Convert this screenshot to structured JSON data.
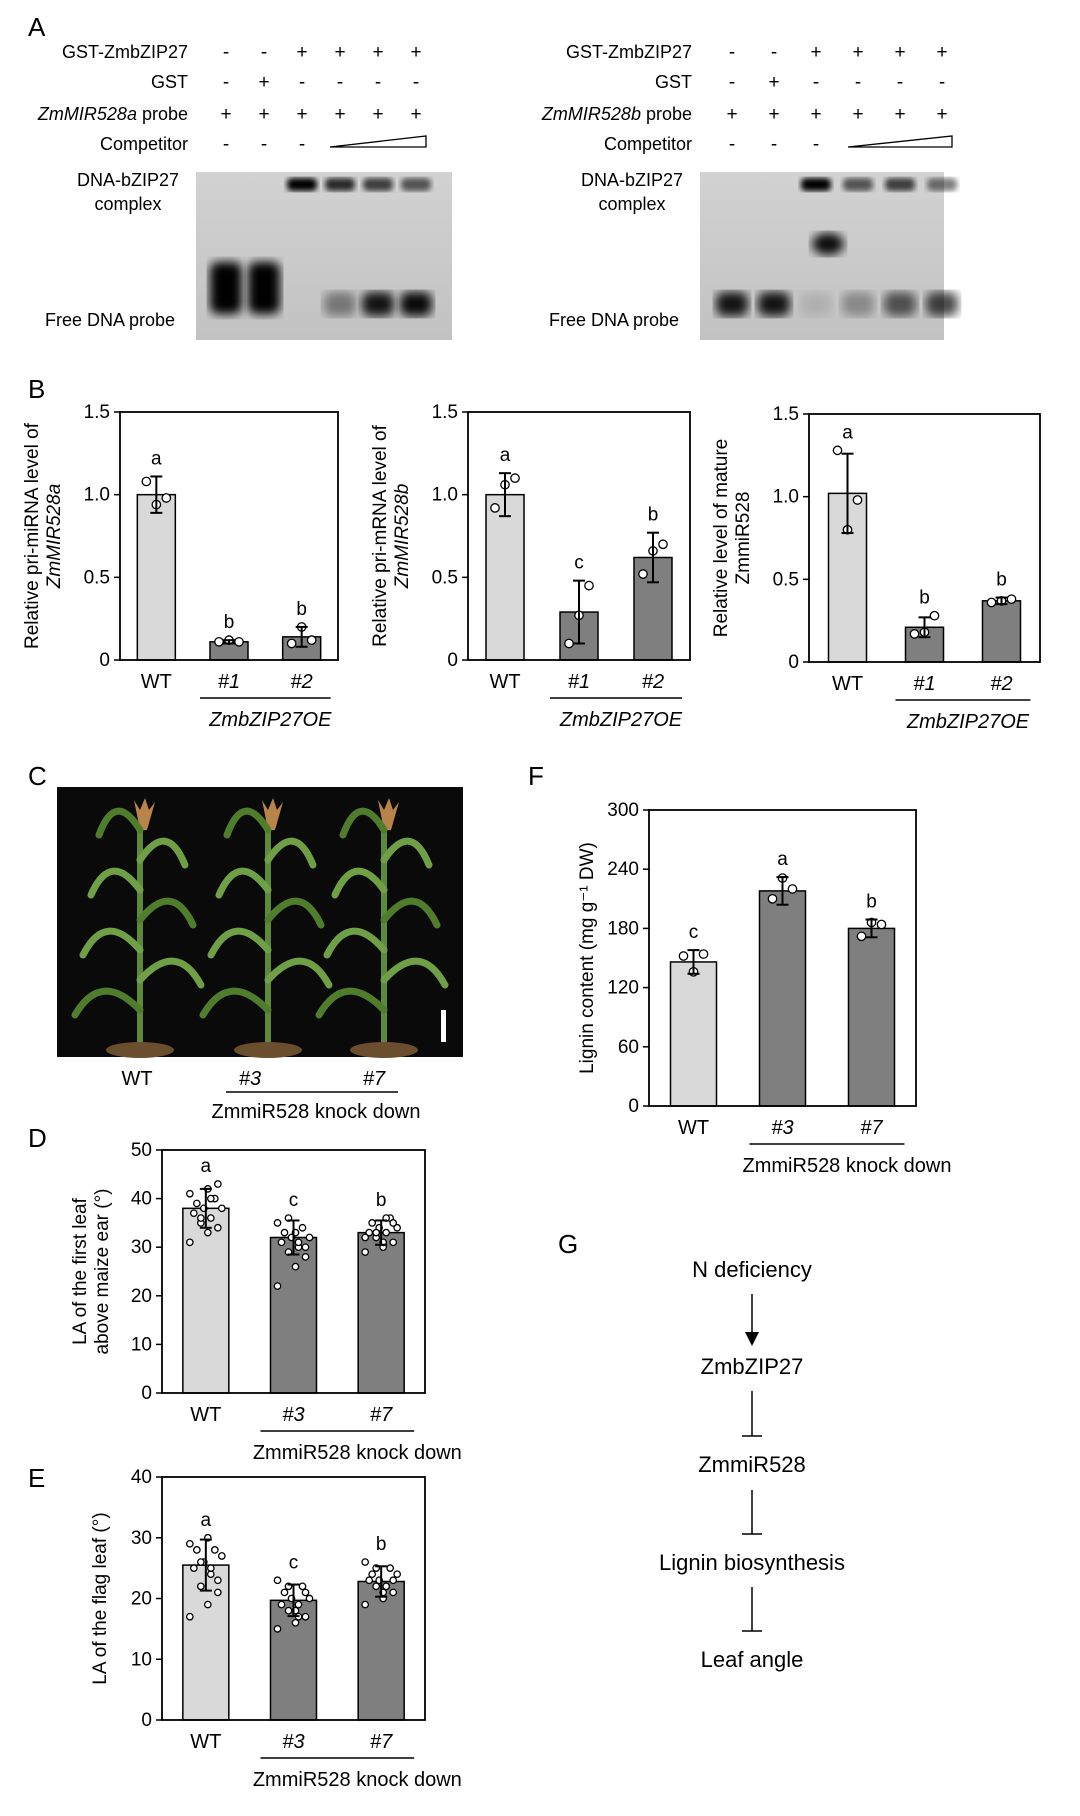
{
  "colors": {
    "wt": "#d9d9d9",
    "mutant": "#7f7f7f",
    "axis": "#000000",
    "gel_bg": "#c8c8c8",
    "plant_bg": "#0a0a0a"
  },
  "panels": {
    "A": {
      "letter": "A",
      "gels": [
        {
          "rows": [
            {
              "label": "GST-ZmbZIP27",
              "label_it": "",
              "label_rest": "",
              "signs": [
                "-",
                "-",
                "+",
                "+",
                "+",
                "+"
              ]
            },
            {
              "label": "GST",
              "label_it": "",
              "label_rest": "",
              "signs": [
                "-",
                "+",
                "-",
                "-",
                "-",
                "-"
              ]
            },
            {
              "label": "",
              "label_it": "ZmMIR528a",
              "label_rest": " probe",
              "signs": [
                "+",
                "+",
                "+",
                "+",
                "+",
                "+"
              ]
            },
            {
              "label": "Competitor",
              "label_it": "",
              "label_rest": "",
              "signs": [
                "-",
                "-",
                "-",
                "wedge",
                "",
                ""
              ]
            }
          ],
          "complex_label": [
            "DNA-bZIP27",
            "complex"
          ],
          "free_label": "Free DNA probe",
          "complex_band": [
            0,
            0,
            1.0,
            0.8,
            0.7,
            0.6
          ],
          "free_band": [
            1.0,
            1.0,
            0,
            0.4,
            0.9,
            0.95
          ]
        },
        {
          "rows": [
            {
              "label": "GST-ZmbZIP27",
              "label_it": "",
              "label_rest": "",
              "signs": [
                "-",
                "-",
                "+",
                "+",
                "+",
                "+"
              ]
            },
            {
              "label": "GST",
              "label_it": "",
              "label_rest": "",
              "signs": [
                "-",
                "+",
                "-",
                "-",
                "-",
                "-"
              ]
            },
            {
              "label": "",
              "label_it": "ZmMIR528b",
              "label_rest": " probe",
              "signs": [
                "+",
                "+",
                "+",
                "+",
                "+",
                "+"
              ]
            },
            {
              "label": "Competitor",
              "label_it": "",
              "label_rest": "",
              "signs": [
                "-",
                "-",
                "-",
                "wedge",
                "",
                ""
              ]
            }
          ],
          "complex_label": [
            "DNA-bZIP27",
            "complex"
          ],
          "free_label": "Free DNA probe",
          "complex_band": [
            0,
            0,
            1.0,
            0.6,
            0.7,
            0.5
          ],
          "free_band": [
            0.9,
            0.9,
            0.1,
            0.3,
            0.6,
            0.7
          ]
        }
      ]
    },
    "B": {
      "letter": "B"
    },
    "C": {
      "letter": "C",
      "labels": {
        "wt": "WT",
        "l1": "#3",
        "l2": "#7",
        "group": "ZmmiR528 knock down"
      }
    },
    "D": {
      "letter": "D"
    },
    "E": {
      "letter": "E"
    },
    "F": {
      "letter": "F"
    },
    "G": {
      "letter": "G",
      "nodes": [
        "N deficiency",
        "ZmbZIP27",
        "ZmmiR528",
        "Lignin biosynthesis",
        "Leaf angle"
      ],
      "links": [
        "promote",
        "inhibit",
        "inhibit",
        "inhibit"
      ]
    }
  },
  "chart_data": [
    {
      "id": "B1",
      "type": "bar",
      "categories": [
        "WT",
        "#1",
        "#2"
      ],
      "values": [
        1.0,
        0.11,
        0.14
      ],
      "errors": [
        0.11,
        0.01,
        0.06
      ],
      "points": [
        [
          1.08,
          0.94,
          0.98
        ],
        [
          0.11,
          0.12,
          0.11
        ],
        [
          0.1,
          0.2,
          0.12
        ]
      ],
      "letters": [
        "a",
        "b",
        "b"
      ],
      "ylabel": [
        "Relative pri-miRNA level of",
        "ZmMIR528a"
      ],
      "ylabel_italic": [
        false,
        true
      ],
      "group_label": "ZmbZIP27OE",
      "group_italic": true,
      "ylim": [
        0,
        1.5
      ],
      "yticks": [
        0,
        0.5,
        1.0,
        1.5
      ]
    },
    {
      "id": "B2",
      "type": "bar",
      "categories": [
        "WT",
        "#1",
        "#2"
      ],
      "values": [
        1.0,
        0.29,
        0.62
      ],
      "errors": [
        0.13,
        0.19,
        0.15
      ],
      "points": [
        [
          0.92,
          1.06,
          1.1
        ],
        [
          0.1,
          0.27,
          0.45
        ],
        [
          0.52,
          0.66,
          0.7
        ]
      ],
      "letters": [
        "a",
        "c",
        "b"
      ],
      "ylabel": [
        "Relative pri-mRNA level of",
        "ZmMIR528b"
      ],
      "ylabel_italic": [
        false,
        true
      ],
      "group_label": "ZmbZIP27OE",
      "group_italic": true,
      "ylim": [
        0,
        1.5
      ],
      "yticks": [
        0,
        0.5,
        1.0,
        1.5
      ]
    },
    {
      "id": "B3",
      "type": "bar",
      "categories": [
        "WT",
        "#1",
        "#2"
      ],
      "values": [
        1.02,
        0.21,
        0.37
      ],
      "errors": [
        0.24,
        0.06,
        0.02
      ],
      "points": [
        [
          1.28,
          0.8,
          0.98
        ],
        [
          0.17,
          0.18,
          0.28
        ],
        [
          0.36,
          0.37,
          0.38
        ]
      ],
      "letters": [
        "a",
        "b",
        "b"
      ],
      "ylabel": [
        "Relative level of mature",
        "ZmmiR528"
      ],
      "ylabel_italic": [
        false,
        false
      ],
      "group_label": "ZmbZIP27OE",
      "group_italic": true,
      "ylim": [
        0,
        1.5
      ],
      "yticks": [
        0,
        0.5,
        1.0,
        1.5
      ]
    },
    {
      "id": "F",
      "type": "bar",
      "categories": [
        "WT",
        "#3",
        "#7"
      ],
      "values": [
        146,
        218,
        180
      ],
      "errors": [
        12,
        14,
        9
      ],
      "points": [
        [
          152,
          136,
          154
        ],
        [
          210,
          231,
          220
        ],
        [
          172,
          186,
          184
        ]
      ],
      "letters": [
        "c",
        "a",
        "b"
      ],
      "ylabel": [
        "Lignin content (mg g⁻¹ DW)"
      ],
      "ylabel_italic": [
        false
      ],
      "group_label": "ZmmiR528 knock down",
      "group_italic": false,
      "ylim": [
        0,
        300
      ],
      "yticks": [
        0,
        60,
        120,
        180,
        240,
        300
      ]
    },
    {
      "id": "D",
      "type": "bar",
      "categories": [
        "WT",
        "#3",
        "#7"
      ],
      "values": [
        38,
        32,
        33
      ],
      "errors": [
        4,
        3.5,
        2.5
      ],
      "points": [
        [
          31,
          33,
          34,
          35,
          36,
          37,
          38,
          38,
          39,
          40,
          41,
          42,
          43,
          36,
          40
        ],
        [
          22,
          26,
          28,
          29,
          30,
          31,
          32,
          32,
          33,
          34,
          35,
          33,
          30,
          36,
          31
        ],
        [
          29,
          30,
          31,
          32,
          33,
          33,
          34,
          34,
          35,
          36,
          32,
          31,
          35,
          33,
          36
        ]
      ],
      "letters": [
        "a",
        "c",
        "b"
      ],
      "ylabel": [
        "LA of the first leaf",
        "above maize ear (°)"
      ],
      "ylabel_italic": [
        false,
        false
      ],
      "group_label": "ZmmiR528 knock down",
      "group_italic": false,
      "ylim": [
        0,
        50
      ],
      "yticks": [
        0,
        10,
        20,
        30,
        40,
        50
      ]
    },
    {
      "id": "E",
      "type": "bar",
      "categories": [
        "WT",
        "#3",
        "#7"
      ],
      "values": [
        25.5,
        19.7,
        22.8
      ],
      "errors": [
        4.2,
        2.6,
        2.5
      ],
      "points": [
        [
          17,
          19,
          21,
          22,
          24,
          25,
          26,
          27,
          28,
          28,
          29,
          30,
          23,
          26,
          25
        ],
        [
          15,
          16,
          17,
          18,
          19,
          19,
          20,
          20,
          21,
          22,
          23,
          18,
          21,
          22,
          17
        ],
        [
          19,
          20,
          21,
          22,
          22,
          23,
          23,
          24,
          24,
          25,
          26,
          21,
          23,
          25,
          22
        ]
      ],
      "letters": [
        "a",
        "c",
        "b"
      ],
      "ylabel": [
        "LA of the flag leaf  (°)"
      ],
      "ylabel_italic": [
        false
      ],
      "group_label": "ZmmiR528 knock down",
      "group_italic": false,
      "ylim": [
        0,
        40
      ],
      "yticks": [
        0,
        10,
        20,
        30,
        40
      ]
    }
  ]
}
